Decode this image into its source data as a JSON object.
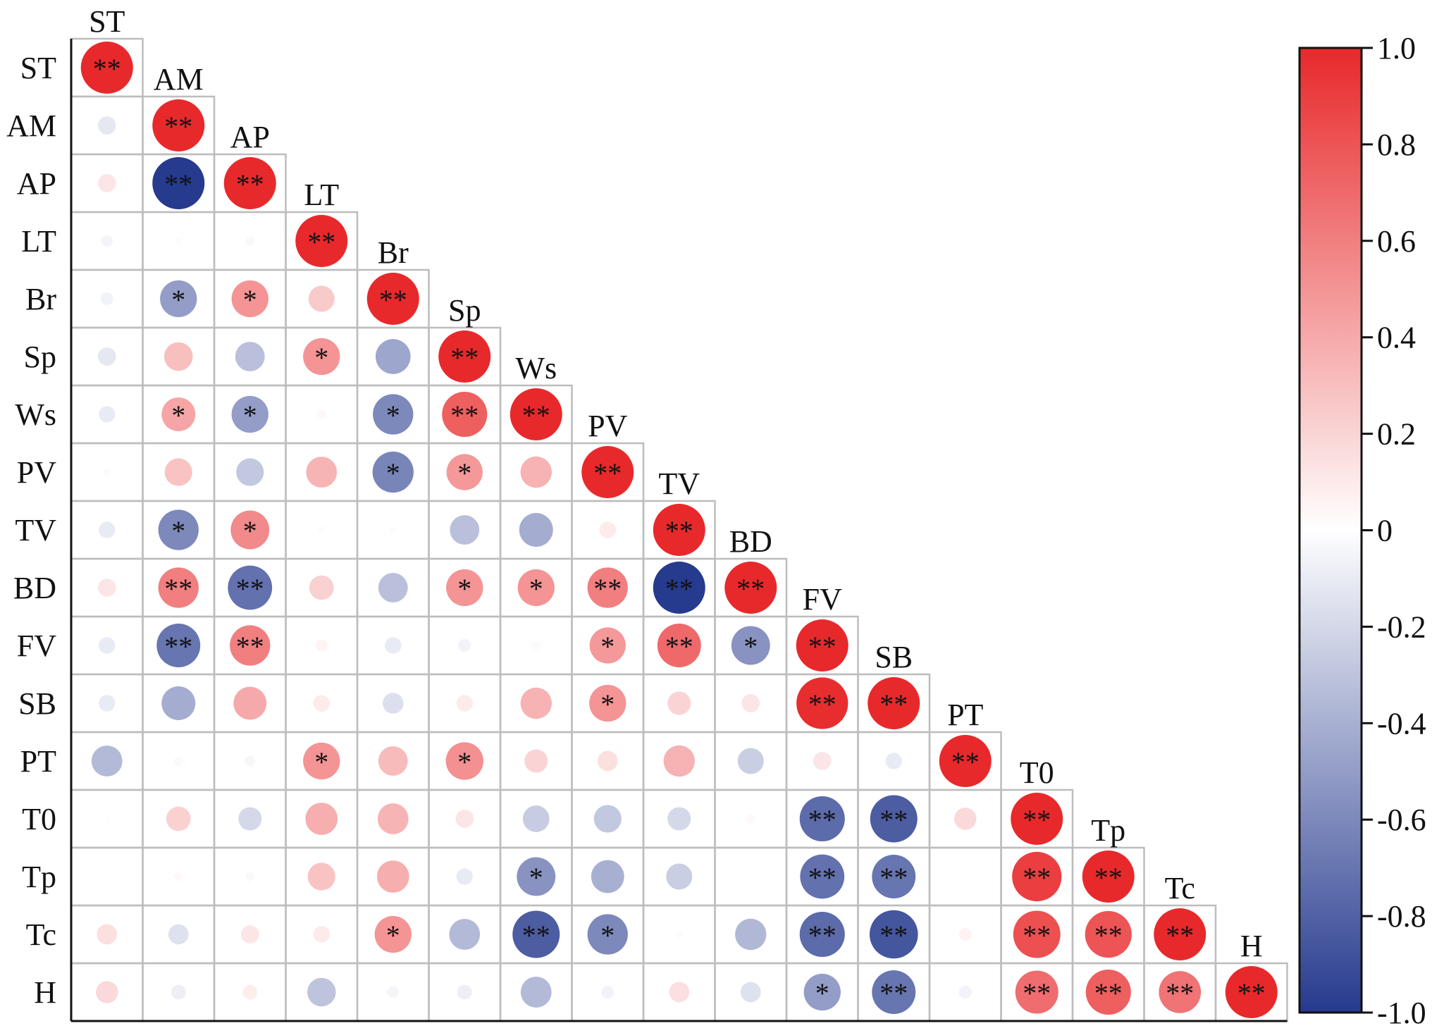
{
  "chart_data": {
    "type": "heatmap",
    "variables": [
      "ST",
      "AM",
      "AP",
      "LT",
      "Br",
      "Sp",
      "Ws",
      "PV",
      "TV",
      "BD",
      "FV",
      "SB",
      "PT",
      "T0",
      "Tp",
      "Tc",
      "H"
    ],
    "matrix": [
      [
        1.0
      ],
      [
        -0.12,
        1.0
      ],
      [
        0.12,
        -1.0,
        1.0
      ],
      [
        -0.05,
        0.02,
        -0.03,
        1.0
      ],
      [
        -0.06,
        -0.5,
        0.5,
        0.25,
        1.0
      ],
      [
        -0.12,
        0.3,
        -0.32,
        0.5,
        -0.45,
        1.0
      ],
      [
        -0.1,
        0.42,
        -0.5,
        0.03,
        -0.6,
        0.75,
        1.0
      ],
      [
        -0.02,
        0.28,
        -0.28,
        0.35,
        -0.62,
        0.48,
        0.36,
        1.0
      ],
      [
        -0.1,
        -0.6,
        0.55,
        0.02,
        0.02,
        -0.32,
        -0.42,
        0.1,
        1.0
      ],
      [
        0.12,
        0.6,
        -0.72,
        0.22,
        -0.32,
        0.5,
        0.5,
        0.6,
        -1.0,
        1.0
      ],
      [
        -0.1,
        -0.7,
        0.6,
        0.05,
        -0.1,
        -0.06,
        0.03,
        0.48,
        0.7,
        -0.55,
        1.0
      ],
      [
        -0.1,
        -0.42,
        0.4,
        0.1,
        -0.16,
        0.1,
        0.36,
        0.5,
        0.2,
        0.12,
        0.98,
        1.0
      ],
      [
        -0.35,
        0.03,
        -0.04,
        0.5,
        0.32,
        0.52,
        0.2,
        0.15,
        0.36,
        -0.25,
        0.12,
        -0.1,
        1.0
      ],
      [
        -0.01,
        0.22,
        -0.2,
        0.38,
        0.35,
        0.12,
        -0.26,
        -0.28,
        -0.2,
        0.03,
        -0.75,
        -0.82,
        0.18,
        1.0
      ],
      [
        0.0,
        0.03,
        -0.03,
        0.28,
        0.38,
        -0.1,
        -0.55,
        -0.4,
        -0.25,
        0.01,
        -0.72,
        -0.7,
        0.0,
        0.9,
        1.0
      ],
      [
        0.15,
        -0.15,
        0.12,
        0.1,
        0.5,
        -0.35,
        -0.82,
        -0.6,
        0.02,
        -0.36,
        -0.75,
        -0.86,
        0.06,
        0.82,
        0.8,
        1.0
      ],
      [
        0.18,
        -0.08,
        0.08,
        -0.3,
        -0.05,
        -0.08,
        -0.35,
        -0.06,
        0.15,
        -0.15,
        -0.5,
        -0.7,
        -0.06,
        0.68,
        0.75,
        0.65,
        1.0
      ]
    ],
    "significance": [
      [
        "**"
      ],
      [
        "",
        "**"
      ],
      [
        "",
        "**",
        "**"
      ],
      [
        "",
        "",
        "",
        "**"
      ],
      [
        "",
        "*",
        "*",
        "",
        "**"
      ],
      [
        "",
        "",
        "",
        "*",
        "",
        "**"
      ],
      [
        "",
        "*",
        "*",
        "",
        "*",
        "**",
        "**"
      ],
      [
        "",
        "",
        "",
        "",
        "*",
        "*",
        "",
        "**"
      ],
      [
        "",
        "*",
        "*",
        "",
        "",
        "",
        "",
        "",
        "**"
      ],
      [
        "",
        "**",
        "**",
        "",
        "",
        "*",
        "*",
        "**",
        "**",
        "**"
      ],
      [
        "",
        "**",
        "**",
        "",
        "",
        "",
        "",
        "*",
        "**",
        "*",
        "**"
      ],
      [
        "",
        "",
        "",
        "",
        "",
        "",
        "",
        "*",
        "",
        "",
        "**",
        "**"
      ],
      [
        "",
        "",
        "",
        "*",
        "",
        "*",
        "",
        "",
        "",
        "",
        "",
        "",
        "**"
      ],
      [
        "",
        "",
        "",
        "",
        "",
        "",
        "",
        "",
        "",
        "",
        "**",
        "**",
        "",
        "**"
      ],
      [
        "",
        "",
        "",
        "",
        "",
        "",
        "*",
        "",
        "",
        "",
        "**",
        "**",
        "",
        "**",
        "**"
      ],
      [
        "",
        "",
        "",
        "",
        "*",
        "",
        "**",
        "*",
        "",
        "",
        "**",
        "**",
        "",
        "**",
        "**",
        "**"
      ],
      [
        "",
        "",
        "",
        "",
        "",
        "",
        "",
        "",
        "",
        "",
        "*",
        "**",
        "",
        "**",
        "**",
        "**",
        "**"
      ]
    ],
    "colorbar": {
      "min": -1.0,
      "max": 1.0,
      "ticks": [
        "1.0",
        "0.8",
        "0.6",
        "0.4",
        "0.2",
        "0",
        "-0.2",
        "-0.4",
        "-0.6",
        "-0.8",
        "-1.0"
      ],
      "colors": {
        "negative": "#263a8e",
        "neutral": "#ffffff",
        "positive": "#e8292b"
      }
    },
    "grid_color": "#bdbdbd",
    "axis_color": "#111111"
  }
}
